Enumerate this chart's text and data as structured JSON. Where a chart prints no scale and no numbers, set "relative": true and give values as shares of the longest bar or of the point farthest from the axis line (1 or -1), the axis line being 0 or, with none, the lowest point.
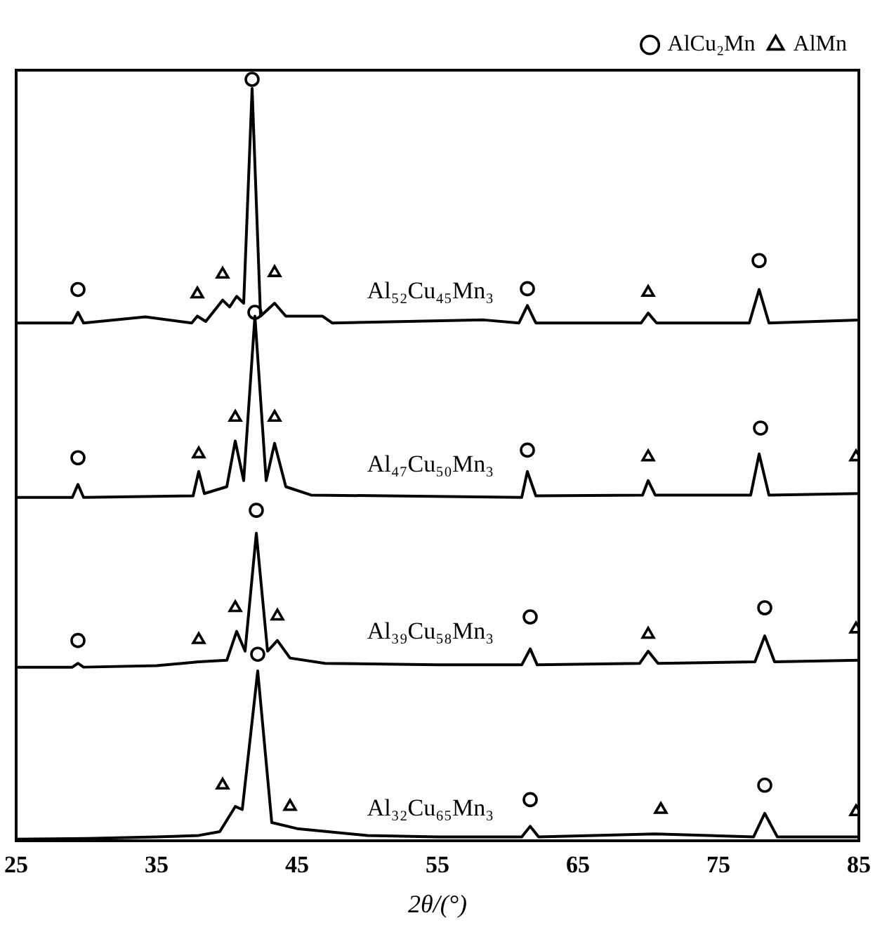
{
  "chart_data": {
    "type": "line",
    "relative": true,
    "xlabel": "2θ/(°)",
    "xlim": [
      25,
      85
    ],
    "xticks": [
      25,
      35,
      45,
      55,
      65,
      75,
      85
    ],
    "tick_labels": "x",
    "grid": false,
    "legend": "top right",
    "marker": "none",
    "line_style": "solid",
    "series": [
      {
        "name": "Al₅₂Cu₄₅Mn₃",
        "color": "#000000",
        "x": [
          25,
          29.0,
          29.4,
          29.8,
          34.2,
          37.5,
          37.9,
          38.5,
          39.7,
          40.2,
          40.7,
          41.2,
          41.8,
          42.4,
          43.4,
          44.2,
          46.8,
          47.5,
          58.3,
          60.8,
          61.4,
          62.0,
          69.5,
          70.0,
          70.6,
          77.2,
          77.9,
          78.6,
          85
        ],
        "values": [
          0.68,
          0.68,
          0.694,
          0.68,
          0.688,
          0.68,
          0.689,
          0.682,
          0.71,
          0.701,
          0.715,
          0.706,
          0.988,
          0.689,
          0.706,
          0.689,
          0.689,
          0.68,
          0.684,
          0.68,
          0.703,
          0.68,
          0.68,
          0.693,
          0.68,
          0.68,
          0.724,
          0.68,
          0.684
        ]
      },
      {
        "name": "Al₄₇Cu₅₀Mn₃",
        "color": "#000000",
        "x": [
          25,
          29.0,
          29.4,
          29.8,
          37.6,
          38.0,
          38.4,
          40.0,
          40.6,
          41.2,
          42.0,
          42.8,
          43.4,
          44.2,
          46,
          61.0,
          61.4,
          62.0,
          69.6,
          70.0,
          70.5,
          77.3,
          77.9,
          78.6,
          85
        ],
        "values": [
          0.451,
          0.451,
          0.468,
          0.451,
          0.453,
          0.485,
          0.456,
          0.465,
          0.525,
          0.473,
          0.689,
          0.473,
          0.522,
          0.465,
          0.454,
          0.451,
          0.485,
          0.453,
          0.454,
          0.473,
          0.454,
          0.454,
          0.508,
          0.454,
          0.456
        ]
      },
      {
        "name": "Al₃₉Cu₅₈Mn₃",
        "color": "#000000",
        "x": [
          25,
          29.0,
          29.4,
          29.8,
          35,
          38.0,
          40.0,
          40.7,
          41.3,
          42.1,
          42.9,
          43.6,
          44.5,
          47,
          55,
          61.0,
          61.6,
          62.1,
          69.4,
          70.0,
          70.7,
          77.6,
          78.3,
          79.0,
          85
        ],
        "values": [
          0.228,
          0.228,
          0.233,
          0.228,
          0.23,
          0.235,
          0.237,
          0.275,
          0.249,
          0.404,
          0.249,
          0.263,
          0.24,
          0.233,
          0.231,
          0.231,
          0.252,
          0.231,
          0.233,
          0.249,
          0.233,
          0.235,
          0.269,
          0.235,
          0.237
        ]
      },
      {
        "name": "Al₃₂Cu₆₅Mn₃",
        "color": "#000000",
        "x": [
          25,
          30,
          35,
          38,
          39.5,
          40.6,
          41.1,
          42.2,
          43.2,
          45,
          50,
          55,
          61.0,
          61.6,
          62.2,
          70.5,
          77.5,
          78.3,
          79.2,
          85
        ],
        "values": [
          0.002,
          0.003,
          0.005,
          0.007,
          0.012,
          0.045,
          0.041,
          0.223,
          0.024,
          0.016,
          0.007,
          0.005,
          0.005,
          0.019,
          0.005,
          0.009,
          0.005,
          0.036,
          0.005,
          0.005
        ]
      },
      {
        "name": "AlCu₂Mn",
        "type": "scatter",
        "marker": "circle",
        "color": "#000000",
        "x": [
          29.4,
          41.8,
          61.4,
          77.9,
          29.4,
          42.0,
          61.4,
          78.0,
          29.4,
          42.1,
          61.6,
          78.3,
          42.2,
          61.6,
          78.3
        ],
        "values": [
          0.724,
          1.0,
          0.725,
          0.762,
          0.503,
          0.694,
          0.513,
          0.542,
          0.263,
          0.434,
          0.294,
          0.306,
          0.245,
          0.054,
          0.073
        ]
      },
      {
        "name": "AlMn",
        "type": "scatter",
        "marker": "triangle",
        "color": "#000000",
        "x": [
          37.9,
          39.7,
          43.4,
          70.0,
          38.0,
          40.6,
          43.4,
          70.0,
          84.8,
          38.0,
          40.6,
          43.6,
          70.0,
          84.8,
          39.7,
          44.5,
          70.9,
          84.8
        ],
        "values": [
          0.718,
          0.744,
          0.746,
          0.72,
          0.508,
          0.556,
          0.556,
          0.504,
          0.504,
          0.264,
          0.306,
          0.295,
          0.271,
          0.278,
          0.073,
          0.045,
          0.041,
          0.038
        ]
      }
    ]
  }
}
